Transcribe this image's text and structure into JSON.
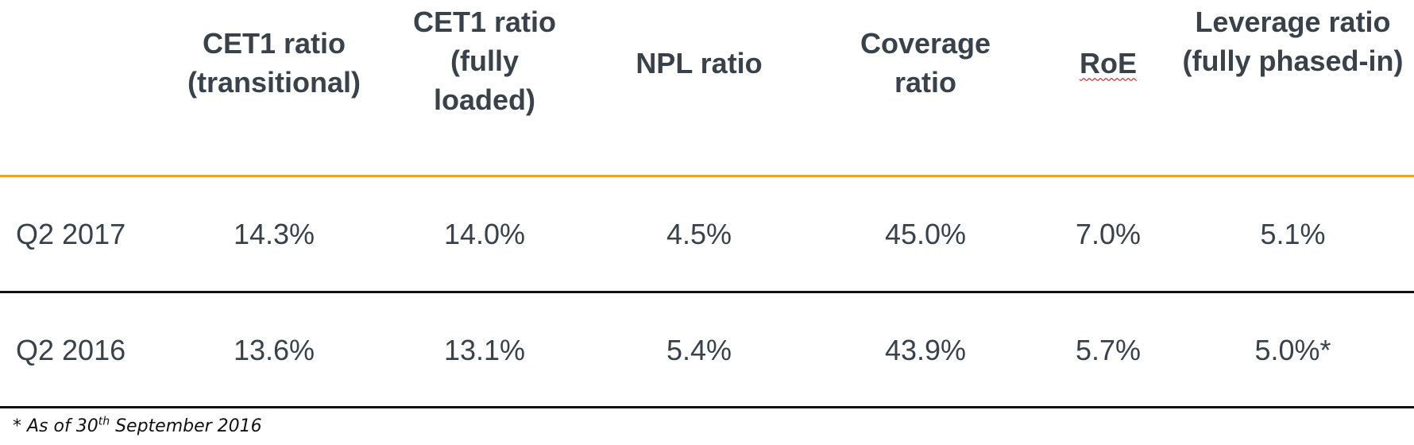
{
  "table": {
    "headers": [
      "CET1 ratio\n(transitional)",
      "CET1 ratio\n(fully\nloaded)",
      "NPL ratio",
      "Coverage\nratio",
      "RoE",
      "Leverage ratio\n(fully phased-in)"
    ],
    "rows": [
      {
        "label": "Q2 2017",
        "values": [
          "14.3%",
          "14.0%",
          "4.5%",
          "45.0%",
          "7.0%",
          "5.1%"
        ]
      },
      {
        "label": "Q2 2016",
        "values": [
          "13.6%",
          "13.1%",
          "5.4%",
          "43.9%",
          "5.7%",
          "5.0%*"
        ]
      }
    ]
  },
  "footnote": {
    "prefix": "* As of 30",
    "superscript": "th",
    "suffix": " September 2016"
  },
  "colors": {
    "header_text": "#39424a",
    "orange_rule": "#f0a31c",
    "black_rule": "#111111",
    "spellcheck_underline": "#c00000"
  }
}
